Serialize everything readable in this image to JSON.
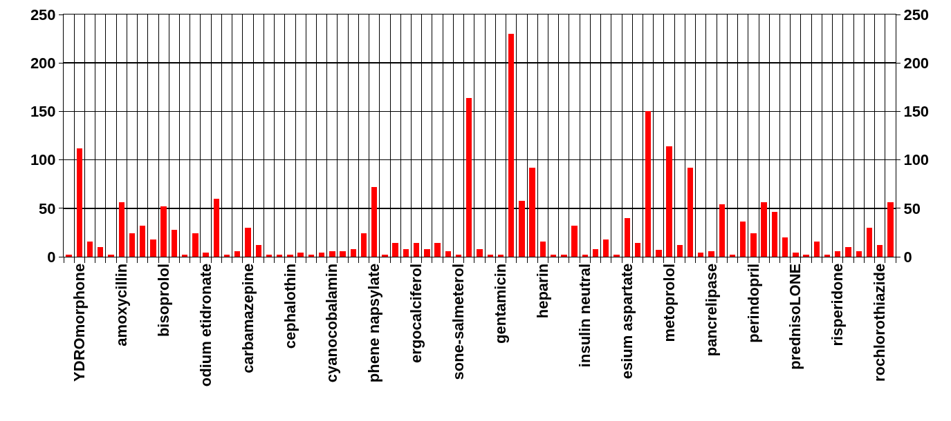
{
  "chart_data": {
    "type": "bar",
    "categories": [
      null,
      "YDROmorphone",
      null,
      null,
      null,
      "amoxycillin",
      null,
      null,
      null,
      "bisoprolol",
      null,
      null,
      null,
      "odium etidronate",
      null,
      null,
      null,
      "carbamazepine",
      null,
      null,
      null,
      "cephalothin",
      null,
      null,
      null,
      "cyanocobalamin",
      null,
      null,
      null,
      "phene napsylate",
      null,
      null,
      null,
      "ergocalciferol",
      null,
      null,
      null,
      "sone-salmeterol",
      null,
      null,
      null,
      "gentamicin",
      null,
      null,
      null,
      "heparin",
      null,
      null,
      null,
      "insulin neutral",
      null,
      null,
      null,
      "esium aspartate",
      null,
      null,
      null,
      "metoprolol",
      null,
      null,
      null,
      "pancrelipase",
      null,
      null,
      null,
      "perindopril",
      null,
      null,
      null,
      "prednisoLONE",
      null,
      null,
      null,
      "risperidone",
      null,
      null,
      null,
      "rochlorothiazide",
      null
    ],
    "values": [
      2,
      112,
      16,
      10,
      2,
      56,
      24,
      32,
      18,
      52,
      28,
      2,
      24,
      4,
      60,
      2,
      6,
      30,
      12,
      2,
      2,
      2,
      4,
      2,
      4,
      6,
      6,
      8,
      24,
      72,
      2,
      14,
      8,
      14,
      8,
      14,
      6,
      2,
      164,
      8,
      2,
      2,
      230,
      58,
      92,
      16,
      2,
      2,
      32,
      2,
      8,
      18,
      2,
      40,
      14,
      150,
      7,
      114,
      12,
      92,
      4,
      6,
      54,
      2,
      36,
      24,
      56,
      46,
      20,
      4,
      2,
      16,
      2,
      6,
      10,
      6,
      30,
      12,
      56
    ],
    "color": "#ff0000",
    "ylim": [
      0,
      250
    ],
    "yticks": [
      0,
      50,
      100,
      150,
      200,
      250
    ],
    "y2lim": [
      0,
      250
    ],
    "y2ticks": [
      0,
      50,
      100,
      150,
      200,
      250
    ],
    "grid": true
  }
}
